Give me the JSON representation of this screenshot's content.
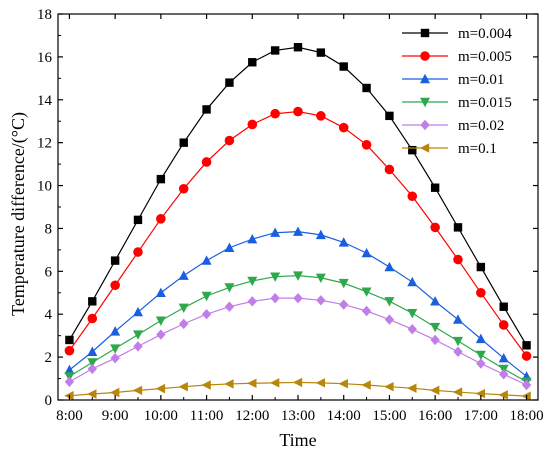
{
  "chart_data": {
    "type": "line",
    "xlabel": "Time",
    "ylabel": "Temperature difference/(°C)",
    "ylim": [
      0,
      18
    ],
    "yticks": [
      0,
      2,
      4,
      6,
      8,
      10,
      12,
      14,
      16,
      18
    ],
    "xlim": [
      7.75,
      18.25
    ],
    "xtick_labels": [
      "8:00",
      "9:00",
      "10:00",
      "11:00",
      "12:00",
      "13:00",
      "14:00",
      "15:00",
      "16:00",
      "17:00",
      "18:00"
    ],
    "grid": false,
    "legend_position": "top-right",
    "x": [
      8.0,
      8.5,
      9.0,
      9.5,
      10.0,
      10.5,
      11.0,
      11.5,
      12.0,
      12.5,
      13.0,
      13.5,
      14.0,
      14.5,
      15.0,
      15.5,
      16.0,
      16.5,
      17.0,
      17.5,
      18.0
    ],
    "series": [
      {
        "name": "m=0.004",
        "color": "#000000",
        "marker": "square",
        "values": [
          2.8,
          4.6,
          6.5,
          8.4,
          10.3,
          12.0,
          13.55,
          14.8,
          15.75,
          16.3,
          16.45,
          16.2,
          15.55,
          14.55,
          13.25,
          11.65,
          9.9,
          8.05,
          6.2,
          4.35,
          2.55
        ]
      },
      {
        "name": "m=0.005",
        "color": "#ff0000",
        "marker": "circle",
        "values": [
          2.3,
          3.8,
          5.35,
          6.9,
          8.45,
          9.85,
          11.1,
          12.1,
          12.85,
          13.35,
          13.45,
          13.25,
          12.7,
          11.9,
          10.75,
          9.5,
          8.05,
          6.55,
          5.0,
          3.5,
          2.05
        ]
      },
      {
        "name": "m=0.01",
        "color": "#1a5fe0",
        "marker": "triangle-up",
        "values": [
          1.4,
          2.25,
          3.2,
          4.1,
          5.0,
          5.8,
          6.5,
          7.1,
          7.5,
          7.8,
          7.85,
          7.7,
          7.35,
          6.85,
          6.2,
          5.5,
          4.6,
          3.75,
          2.85,
          1.95,
          1.1
        ]
      },
      {
        "name": "m=0.015",
        "color": "#2ea84a",
        "marker": "triangle-down",
        "values": [
          1.1,
          1.75,
          2.4,
          3.05,
          3.7,
          4.3,
          4.85,
          5.25,
          5.55,
          5.75,
          5.8,
          5.7,
          5.45,
          5.05,
          4.6,
          4.05,
          3.4,
          2.75,
          2.1,
          1.45,
          0.85
        ]
      },
      {
        "name": "m=0.02",
        "color": "#c27ee8",
        "marker": "diamond",
        "values": [
          0.85,
          1.45,
          1.95,
          2.5,
          3.05,
          3.55,
          4.0,
          4.35,
          4.6,
          4.75,
          4.75,
          4.65,
          4.45,
          4.15,
          3.75,
          3.3,
          2.8,
          2.25,
          1.7,
          1.2,
          0.7
        ]
      },
      {
        "name": "m=0.1",
        "color": "#b8860b",
        "marker": "triangle-left",
        "values": [
          0.2,
          0.28,
          0.35,
          0.45,
          0.53,
          0.62,
          0.7,
          0.75,
          0.78,
          0.8,
          0.82,
          0.8,
          0.76,
          0.7,
          0.62,
          0.55,
          0.45,
          0.37,
          0.3,
          0.24,
          0.18
        ]
      }
    ]
  }
}
